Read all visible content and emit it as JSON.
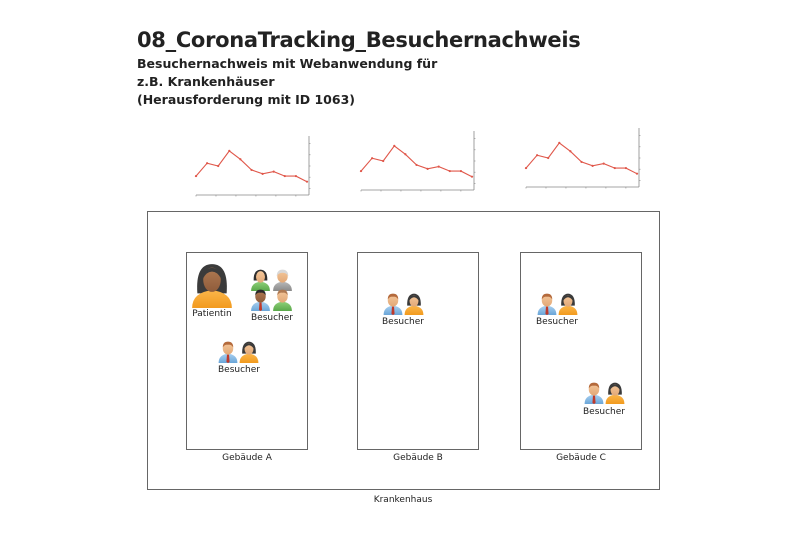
{
  "header": {
    "title": "08_CoronaTracking_Besuchernachweis",
    "subtitle_lines": [
      "Besuchernachweis mit Webanwendung für",
      "z.B. Krankenhäuser",
      "(Herausforderung mit ID 1063)"
    ]
  },
  "colors": {
    "line": "#e0574a",
    "axis": "#888888",
    "border": "#666666"
  },
  "chart_data": [
    {
      "type": "line",
      "title": "",
      "xlabel": "",
      "ylabel": "",
      "x": [
        1,
        2,
        3,
        4,
        5,
        6,
        7,
        8,
        9,
        10,
        11
      ],
      "values": [
        32,
        55,
        50,
        77,
        62,
        43,
        36,
        40,
        32,
        32,
        22
      ],
      "ylim": [
        0,
        100
      ],
      "grid": false,
      "y_axis_position": "right"
    },
    {
      "type": "line",
      "title": "",
      "xlabel": "",
      "ylabel": "",
      "x": [
        1,
        2,
        3,
        4,
        5,
        6,
        7,
        8,
        9,
        10,
        11
      ],
      "values": [
        32,
        55,
        50,
        77,
        62,
        43,
        36,
        40,
        32,
        32,
        22
      ],
      "ylim": [
        0,
        100
      ],
      "grid": false,
      "y_axis_position": "right"
    },
    {
      "type": "line",
      "title": "",
      "xlabel": "",
      "ylabel": "",
      "x": [
        1,
        2,
        3,
        4,
        5,
        6,
        7,
        8,
        9,
        10,
        11
      ],
      "values": [
        32,
        55,
        50,
        77,
        62,
        43,
        36,
        40,
        32,
        32,
        22
      ],
      "ylim": [
        0,
        100
      ],
      "grid": false,
      "y_axis_position": "right"
    }
  ],
  "diagram": {
    "container_label": "Krankenhaus",
    "buildings": [
      {
        "label": "Gebäude A",
        "people": [
          {
            "icon": "female-patient-icon",
            "label": "Patientin"
          },
          {
            "icon": "visitor-group-icon",
            "label": "Besucher"
          },
          {
            "icon": "visitor-pair-icon",
            "label": "Besucher"
          }
        ]
      },
      {
        "label": "Gebäude B",
        "people": [
          {
            "icon": "visitor-pair-icon",
            "label": "Besucher"
          }
        ]
      },
      {
        "label": "Gebäude C",
        "people": [
          {
            "icon": "visitor-pair-icon",
            "label": "Besucher"
          },
          {
            "icon": "visitor-pair-icon",
            "label": "Besucher"
          }
        ]
      }
    ]
  }
}
